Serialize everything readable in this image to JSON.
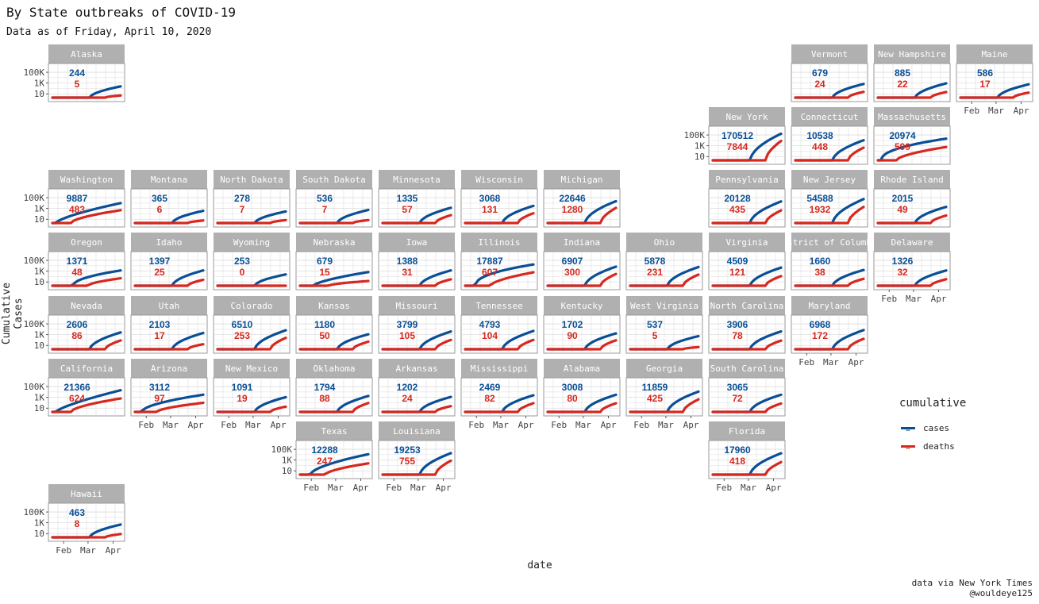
{
  "title": "By State outbreaks of COVID-19",
  "subtitle": "Data as of Friday, April 10, 2020",
  "caption_lines": [
    "data via New York Times",
    "@wouldeye125"
  ],
  "colors": {
    "cases": "#0a4f95",
    "deaths": "#d6281f",
    "strip": "#b0b0b0",
    "grid": "#dddddd",
    "panel_border": "#999999"
  },
  "chart_data": {
    "type": "line",
    "title": "By State outbreaks of COVID-19",
    "subtitle": "Data as of Friday, April 10, 2020",
    "xlabel": "date",
    "ylabel": "Cumulative Cases",
    "y_scale": "log10",
    "y_ticks": [
      "10",
      "1K",
      "100K"
    ],
    "x_ticks": [
      "Feb",
      "Mar",
      "Apr"
    ],
    "legend": {
      "title": "cumulative",
      "entries": [
        "cases",
        "deaths"
      ],
      "position": "right"
    },
    "facets": [
      {
        "state": "Alaska",
        "cases": 244,
        "deaths": 5
      },
      {
        "state": "Vermont",
        "cases": 679,
        "deaths": 24
      },
      {
        "state": "New Hampshire",
        "cases": 885,
        "deaths": 22
      },
      {
        "state": "Maine",
        "cases": 586,
        "deaths": 17
      },
      {
        "state": "New York",
        "cases": 170512,
        "deaths": 7844
      },
      {
        "state": "Connecticut",
        "cases": 10538,
        "deaths": 448
      },
      {
        "state": "Massachusetts",
        "cases": 20974,
        "deaths": 599
      },
      {
        "state": "Washington",
        "cases": 9887,
        "deaths": 483
      },
      {
        "state": "Montana",
        "cases": 365,
        "deaths": 6
      },
      {
        "state": "North Dakota",
        "cases": 278,
        "deaths": 7
      },
      {
        "state": "South Dakota",
        "cases": 536,
        "deaths": 7
      },
      {
        "state": "Minnesota",
        "cases": 1335,
        "deaths": 57
      },
      {
        "state": "Wisconsin",
        "cases": 3068,
        "deaths": 131
      },
      {
        "state": "Michigan",
        "cases": 22646,
        "deaths": 1280
      },
      {
        "state": "Pennsylvania",
        "cases": 20128,
        "deaths": 435
      },
      {
        "state": "New Jersey",
        "cases": 54588,
        "deaths": 1932
      },
      {
        "state": "Rhode Island",
        "cases": 2015,
        "deaths": 49
      },
      {
        "state": "Oregon",
        "cases": 1371,
        "deaths": 48
      },
      {
        "state": "Idaho",
        "cases": 1397,
        "deaths": 25
      },
      {
        "state": "Wyoming",
        "cases": 253,
        "deaths": 0
      },
      {
        "state": "Nebraska",
        "cases": 679,
        "deaths": 15
      },
      {
        "state": "Iowa",
        "cases": 1388,
        "deaths": 31
      },
      {
        "state": "Illinois",
        "cases": 17887,
        "deaths": 607
      },
      {
        "state": "Indiana",
        "cases": 6907,
        "deaths": 300
      },
      {
        "state": "Ohio",
        "cases": 5878,
        "deaths": 231
      },
      {
        "state": "Virginia",
        "cases": 4509,
        "deaths": 121
      },
      {
        "state": "District of Columbia",
        "cases": 1660,
        "deaths": 38
      },
      {
        "state": "Delaware",
        "cases": 1326,
        "deaths": 32
      },
      {
        "state": "Nevada",
        "cases": 2606,
        "deaths": 86
      },
      {
        "state": "Utah",
        "cases": 2103,
        "deaths": 17
      },
      {
        "state": "Colorado",
        "cases": 6510,
        "deaths": 253
      },
      {
        "state": "Kansas",
        "cases": 1180,
        "deaths": 50
      },
      {
        "state": "Missouri",
        "cases": 3799,
        "deaths": 105
      },
      {
        "state": "Tennessee",
        "cases": 4793,
        "deaths": 104
      },
      {
        "state": "Kentucky",
        "cases": 1702,
        "deaths": 90
      },
      {
        "state": "West Virginia",
        "cases": 537,
        "deaths": 5
      },
      {
        "state": "North Carolina",
        "cases": 3906,
        "deaths": 78
      },
      {
        "state": "Maryland",
        "cases": 6968,
        "deaths": 172
      },
      {
        "state": "California",
        "cases": 21366,
        "deaths": 624
      },
      {
        "state": "Arizona",
        "cases": 3112,
        "deaths": 97
      },
      {
        "state": "New Mexico",
        "cases": 1091,
        "deaths": 19
      },
      {
        "state": "Oklahoma",
        "cases": 1794,
        "deaths": 88
      },
      {
        "state": "Arkansas",
        "cases": 1202,
        "deaths": 24
      },
      {
        "state": "Mississippi",
        "cases": 2469,
        "deaths": 82
      },
      {
        "state": "Alabama",
        "cases": 3008,
        "deaths": 80
      },
      {
        "state": "Georgia",
        "cases": 11859,
        "deaths": 425
      },
      {
        "state": "South Carolina",
        "cases": 3065,
        "deaths": 72
      },
      {
        "state": "Texas",
        "cases": 12288,
        "deaths": 247
      },
      {
        "state": "Louisiana",
        "cases": 19253,
        "deaths": 755
      },
      {
        "state": "Florida",
        "cases": 17960,
        "deaths": 418
      },
      {
        "state": "Hawaii",
        "cases": 463,
        "deaths": 8
      }
    ]
  }
}
